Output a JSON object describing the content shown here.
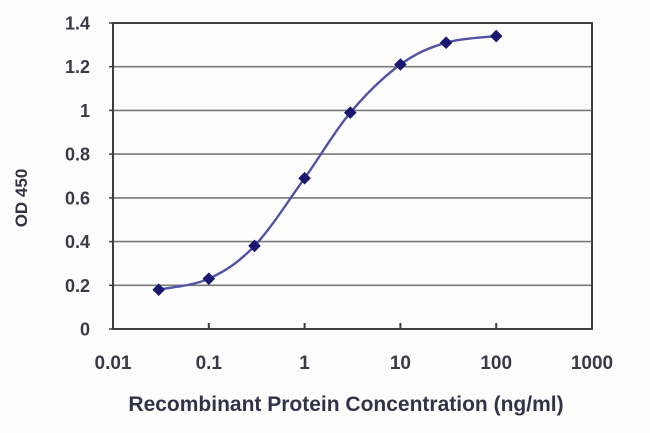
{
  "chart_data": {
    "type": "line",
    "title": "",
    "xlabel": "Recombinant Protein Concentration (ng/ml)",
    "ylabel": "OD 450",
    "x_scale": "log",
    "xlim": [
      0.01,
      1000
    ],
    "ylim": [
      0,
      1.4
    ],
    "x_ticks": [
      0.01,
      0.1,
      1,
      10,
      100,
      1000
    ],
    "x_tick_labels": [
      "0.01",
      "0.1",
      "1",
      "10",
      "100",
      "1000"
    ],
    "y_ticks": [
      0,
      0.2,
      0.4,
      0.6,
      0.8,
      1,
      1.2,
      1.4
    ],
    "y_tick_labels": [
      "0",
      "0.2",
      "0.4",
      "0.6",
      "0.8",
      "1",
      "1.2",
      "1.4"
    ],
    "grid": "horizontal",
    "legend": "none",
    "series": [
      {
        "name": "OD 450",
        "x": [
          0.03,
          0.1,
          0.3,
          1,
          3,
          10,
          30,
          100
        ],
        "y": [
          0.18,
          0.23,
          0.38,
          0.69,
          0.99,
          1.21,
          1.31,
          1.34
        ],
        "marker": "diamond",
        "smooth": true
      }
    ],
    "colors": {
      "line": "#5152a4",
      "marker": "#18186e",
      "grid": "#787878",
      "frame": "#3e3e3e",
      "tick_text": "#3a3a46",
      "title_text": "#333348",
      "background": "#ffffff"
    }
  }
}
